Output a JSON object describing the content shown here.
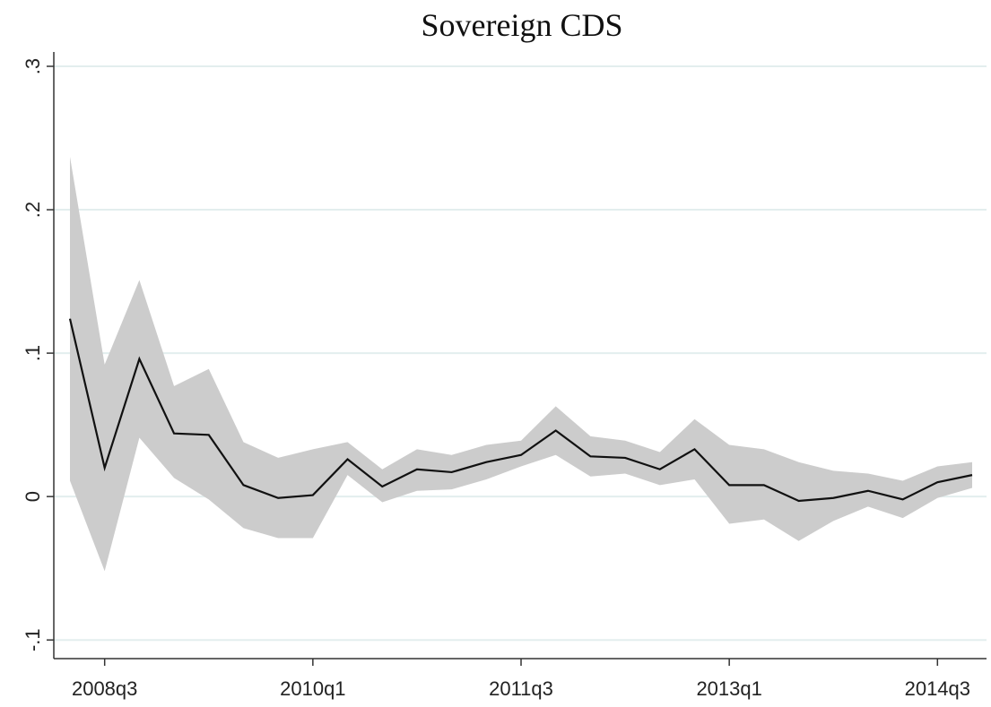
{
  "chart_data": {
    "type": "line",
    "title": "Sovereign CDS",
    "x": [
      "2008q2",
      "2008q3",
      "2008q4",
      "2009q1",
      "2009q2",
      "2009q3",
      "2009q4",
      "2010q1",
      "2010q2",
      "2010q3",
      "2010q4",
      "2011q1",
      "2011q2",
      "2011q3",
      "2011q4",
      "2012q1",
      "2012q2",
      "2012q3",
      "2012q4",
      "2013q1",
      "2013q2",
      "2013q3",
      "2013q4",
      "2014q1",
      "2014q2",
      "2014q3",
      "2014q4"
    ],
    "xticks": [
      "2008q3",
      "2010q1",
      "2011q3",
      "2013q1",
      "2014q3"
    ],
    "series": [
      {
        "color": "#111111",
        "values": [
          0.124,
          0.02,
          0.096,
          0.044,
          0.043,
          0.008,
          -0.001,
          0.001,
          0.026,
          0.007,
          0.019,
          0.017,
          0.024,
          0.029,
          0.046,
          0.028,
          0.027,
          0.019,
          0.033,
          0.008,
          0.008,
          -0.003,
          -0.001,
          0.004,
          -0.002,
          0.01,
          0.015
        ]
      }
    ],
    "band": {
      "color": "#cccccc",
      "upper": [
        0.237,
        0.092,
        0.151,
        0.077,
        0.089,
        0.038,
        0.027,
        0.033,
        0.038,
        0.019,
        0.033,
        0.029,
        0.036,
        0.039,
        0.063,
        0.042,
        0.039,
        0.031,
        0.054,
        0.036,
        0.033,
        0.024,
        0.018,
        0.016,
        0.011,
        0.021,
        0.024
      ],
      "lower": [
        0.011,
        -0.052,
        0.041,
        0.013,
        -0.002,
        -0.022,
        -0.029,
        -0.029,
        0.015,
        -0.004,
        0.004,
        0.005,
        0.012,
        0.021,
        0.029,
        0.014,
        0.016,
        0.008,
        0.012,
        -0.019,
        -0.016,
        -0.031,
        -0.017,
        -0.007,
        -0.015,
        -0.001,
        0.006
      ]
    },
    "ylim": [
      -0.113,
      0.31
    ],
    "yticks": [
      {
        "value": -0.1,
        "label": "-.1"
      },
      0,
      {
        "value": 0.1,
        "label": ".1"
      },
      {
        "value": 0.2,
        "label": ".2"
      },
      {
        "value": 0.3,
        "label": ".3"
      }
    ],
    "grid": true
  }
}
